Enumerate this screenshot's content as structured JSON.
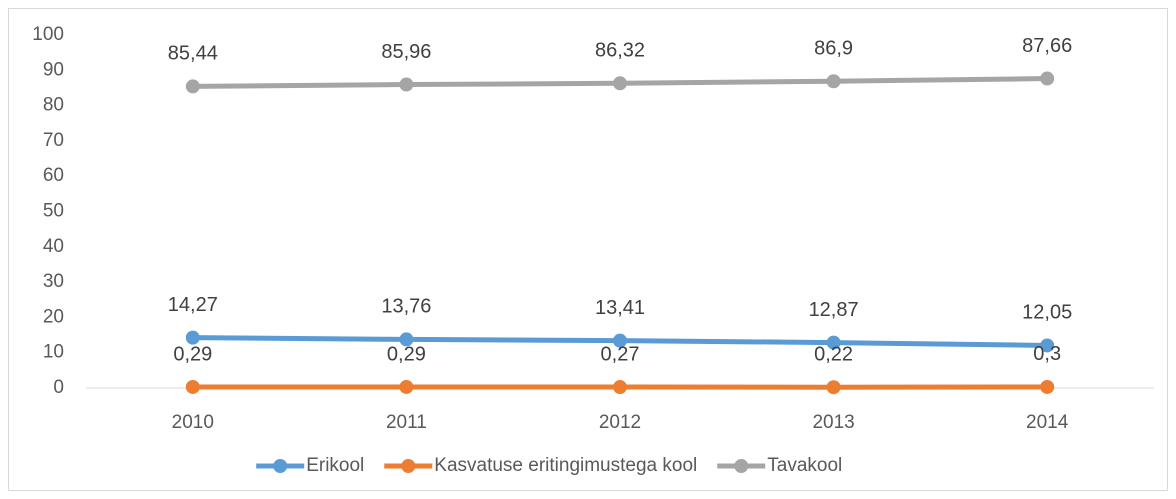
{
  "chart_data": {
    "type": "line",
    "categories": [
      "2010",
      "2011",
      "2012",
      "2013",
      "2014"
    ],
    "series": [
      {
        "name": "Erikool",
        "color": "#5b9bd5",
        "values": [
          14.27,
          13.76,
          13.41,
          12.87,
          12.05
        ],
        "value_labels": [
          "14,27",
          "13,76",
          "13,41",
          "12,87",
          "12,05"
        ]
      },
      {
        "name": "Kasvatuse eritingimustega kool",
        "color": "#ed7d31",
        "values": [
          0.29,
          0.29,
          0.27,
          0.22,
          0.3
        ],
        "value_labels": [
          "0,29",
          "0,29",
          "0,27",
          "0,22",
          "0,3"
        ]
      },
      {
        "name": "Tavakool",
        "color": "#a5a5a5",
        "values": [
          85.44,
          85.96,
          86.32,
          86.9,
          87.66
        ],
        "value_labels": [
          "85,44",
          "85,96",
          "86,32",
          "86,9",
          "87,66"
        ]
      }
    ],
    "ylim": [
      0,
      100
    ],
    "yticks": [
      0,
      10,
      20,
      30,
      40,
      50,
      60,
      70,
      80,
      90,
      100
    ],
    "grid": false,
    "legend": "bottom"
  }
}
